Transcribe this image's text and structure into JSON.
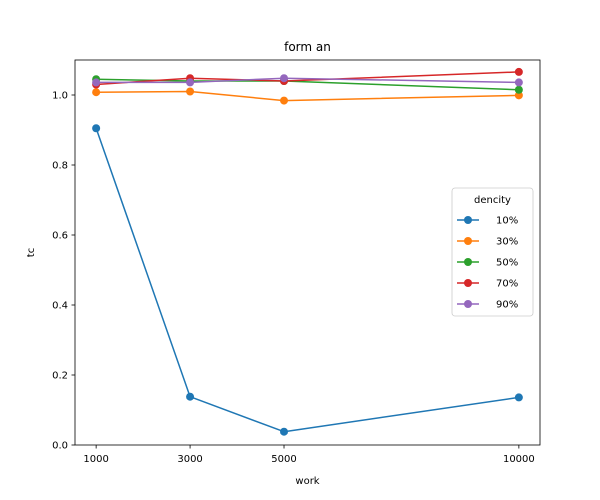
{
  "chart_data": {
    "type": "line",
    "title": "form an",
    "xlabel": "work",
    "ylabel": "tc",
    "x": [
      1000,
      3000,
      5000,
      10000
    ],
    "xticks": [
      "1000",
      "3000",
      "5000",
      "10000"
    ],
    "yticks": [
      "0.0",
      "0.2",
      "0.4",
      "0.6",
      "0.8",
      "1.0"
    ],
    "xlim": [
      550,
      10450
    ],
    "ylim": [
      0,
      1.1
    ],
    "grid": false,
    "legend": {
      "title": "dencity",
      "placement": "center-right"
    },
    "series": [
      {
        "name": "10%",
        "color": "#1f77b4",
        "values": [
          0.905,
          0.138,
          0.038,
          0.136
        ]
      },
      {
        "name": "30%",
        "color": "#ff7f0e",
        "values": [
          1.008,
          1.01,
          0.984,
          0.999
        ]
      },
      {
        "name": "50%",
        "color": "#2ca02c",
        "values": [
          1.045,
          1.04,
          1.04,
          1.015
        ]
      },
      {
        "name": "70%",
        "color": "#d62728",
        "values": [
          1.03,
          1.048,
          1.04,
          1.066
        ]
      },
      {
        "name": "90%",
        "color": "#9467bd",
        "values": [
          1.036,
          1.036,
          1.048,
          1.036
        ]
      }
    ]
  }
}
